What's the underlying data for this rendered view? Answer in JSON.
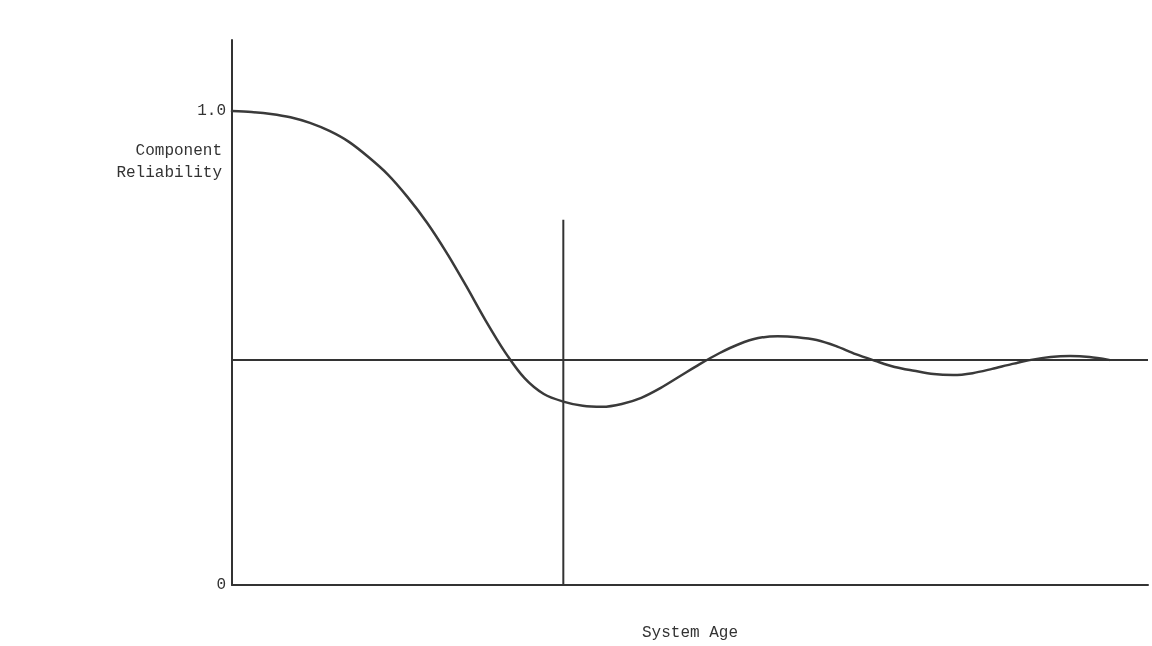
{
  "chart_data": {
    "type": "line",
    "xlabel": "System Age",
    "ylabel": "Component\nReliability",
    "categories": [
      null,
      null,
      null,
      null,
      null,
      null,
      null,
      null,
      null,
      null,
      null,
      null,
      null,
      null,
      null,
      null,
      null,
      null,
      null,
      null,
      null,
      null,
      null,
      null,
      null,
      null,
      null,
      null,
      null,
      null,
      null,
      null,
      null,
      null,
      null,
      null,
      null,
      null,
      null,
      null,
      null,
      null,
      null,
      null,
      null,
      null,
      null,
      null
    ],
    "series": [
      {
        "color": "#3a3a3a",
        "values": [
          1.0,
          0.998,
          0.994,
          0.987,
          0.975,
          0.958,
          0.935,
          0.903,
          0.866,
          0.819,
          0.765,
          0.702,
          0.632,
          0.559,
          0.492,
          0.437,
          0.403,
          0.387,
          0.378,
          0.376,
          0.382,
          0.395,
          0.416,
          0.441,
          0.466,
          0.489,
          0.508,
          0.521,
          0.525,
          0.523,
          0.517,
          0.504,
          0.487,
          0.473,
          0.46,
          0.452,
          0.445,
          0.443,
          0.447,
          0.456,
          0.466,
          0.475,
          0.481,
          0.483,
          0.481,
          0.475,
          null,
          null
        ]
      }
    ],
    "ylim": [
      0,
      1.15
    ],
    "yticks": [
      {
        "value": 0,
        "label": "0"
      },
      {
        "value": 1,
        "label": "1.0"
      }
    ],
    "ref_lines": [
      {
        "axis": "y",
        "value": 0.475
      }
    ],
    "grid": false,
    "marker": "none",
    "line_style": "solid"
  }
}
